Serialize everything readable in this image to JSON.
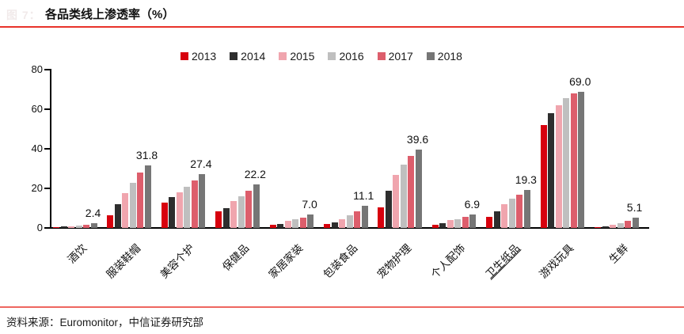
{
  "title": "各品类线上渗透率（%）",
  "faint_prefix": "图 7：",
  "footer": {
    "source": "资料来源：Euromonitor，中信证券研究部"
  },
  "colors": {
    "accent_rule_red": "#e8332a",
    "axis_black": "#000000"
  },
  "chart_data": {
    "type": "bar",
    "title": "各品类线上渗透率（%）",
    "categories": [
      "酒饮",
      "服装鞋帽",
      "美容个护",
      "保健品",
      "家居家装",
      "包装食品",
      "宠物护理",
      "个人配饰",
      "卫生纸品",
      "游戏玩具",
      "生鲜"
    ],
    "underlined_category_index": 8,
    "series": [
      {
        "name": "2013",
        "color": "#d7010e",
        "values": [
          0.4,
          6.5,
          13.0,
          8.5,
          1.5,
          2.0,
          10.5,
          1.5,
          5.5,
          52.0,
          0.3
        ]
      },
      {
        "name": "2014",
        "color": "#2e2e2e",
        "values": [
          0.7,
          12.0,
          15.5,
          10.0,
          2.0,
          3.0,
          19.0,
          2.5,
          8.5,
          58.0,
          1.0
        ]
      },
      {
        "name": "2015",
        "color": "#f0a5ae",
        "values": [
          1.0,
          17.5,
          18.0,
          13.5,
          3.5,
          4.5,
          27.0,
          4.0,
          12.0,
          62.0,
          1.8
        ]
      },
      {
        "name": "2016",
        "color": "#bfbfbf",
        "values": [
          1.3,
          23.0,
          21.0,
          16.0,
          4.3,
          6.5,
          32.0,
          4.5,
          15.0,
          65.5,
          2.5
        ]
      },
      {
        "name": "2017",
        "color": "#dd5e6c",
        "values": [
          1.8,
          28.0,
          24.0,
          19.0,
          5.3,
          8.5,
          36.5,
          5.5,
          17.0,
          68.0,
          3.5
        ]
      },
      {
        "name": "2018",
        "color": "#767676",
        "values": [
          2.4,
          31.8,
          27.4,
          22.2,
          7.0,
          11.1,
          39.6,
          6.9,
          19.3,
          69.0,
          5.1
        ]
      }
    ],
    "data_labels": [
      "2.4",
      "31.8",
      "27.4",
      "22.2",
      "7.0",
      "11.1",
      "39.6",
      "6.9",
      "19.3",
      "69.0",
      "5.1"
    ],
    "data_label_series": "2018",
    "xlabel": "",
    "ylabel": "",
    "ylim": [
      0,
      80
    ],
    "yticks": [
      0,
      20,
      40,
      60,
      80
    ],
    "grid": false,
    "legend_position": "top"
  }
}
